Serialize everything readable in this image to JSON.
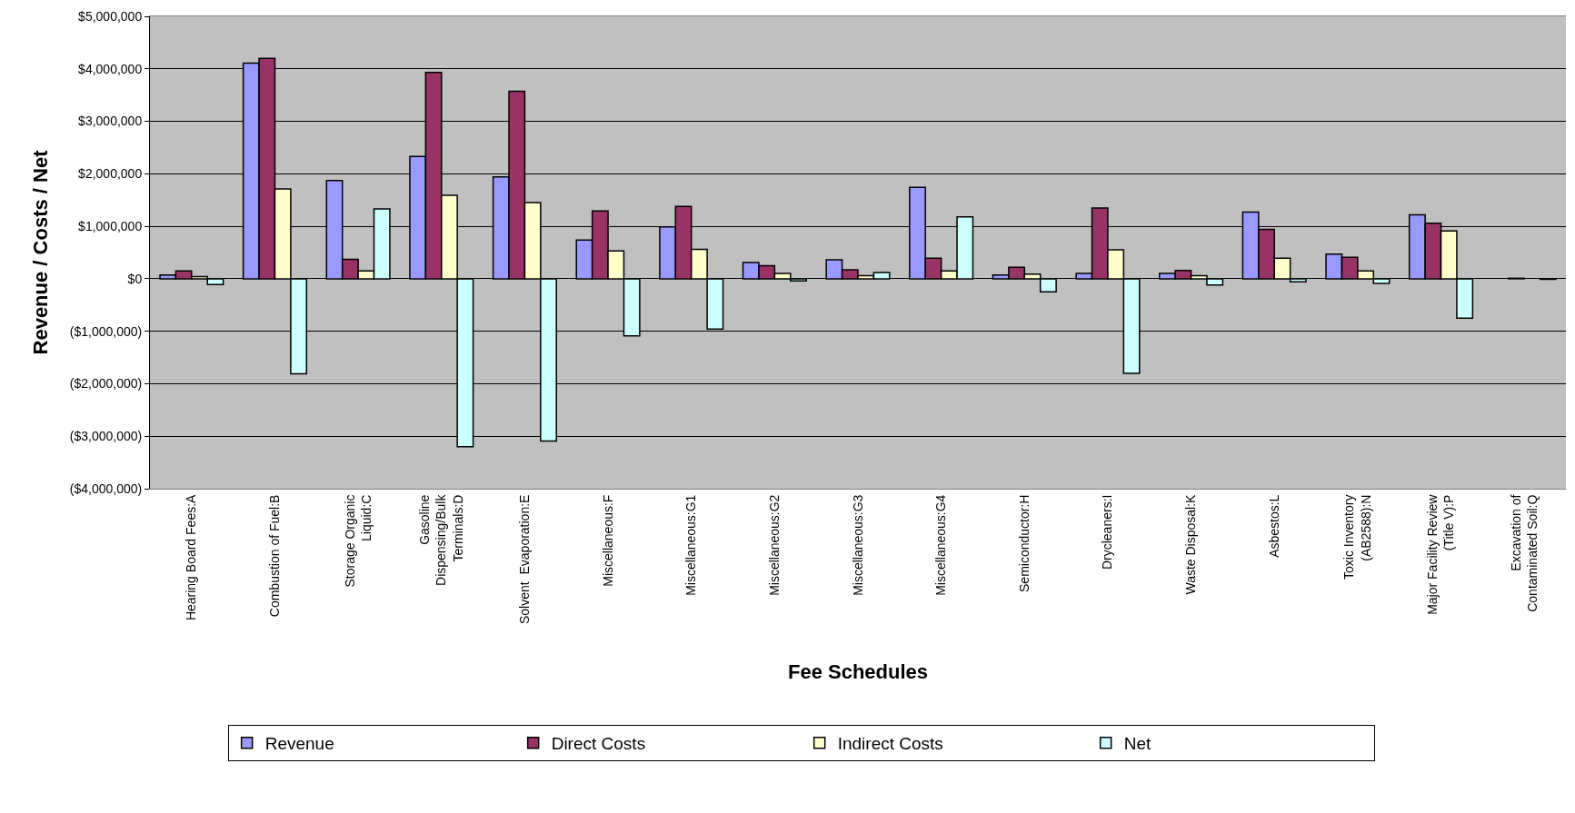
{
  "chart_data": {
    "type": "bar",
    "xlabel": "Fee Schedules",
    "ylabel": "Revenue / Costs / Net",
    "categories": [
      "Hearing Board Fees:A",
      "Combustion of Fuel:B",
      "Storage Organic\nLiquid:C",
      "Gasoline\nDispensing/Bulk\nTerminals:D",
      "Solvent  Evaporation:E",
      "Miscellaneous:F",
      "Miscellaneous:G1",
      "Miscellaneous:G2",
      "Miscellaneous:G3",
      "Miscellaneous:G4",
      "Semiconductor:H",
      "Drycleaners:I",
      "Waste Disposal:K",
      "Asbestos:L",
      "Toxic Inventory\n(AB2588):N",
      "Major Facility Review\n(Title V):P",
      "Excavation of\nContaminated Soil:Q"
    ],
    "series": [
      {
        "name": "Revenue",
        "color": "#9999ff",
        "values": [
          70000,
          4110000,
          1870000,
          2330000,
          1940000,
          740000,
          990000,
          310000,
          360000,
          1740000,
          70000,
          100000,
          100000,
          1270000,
          470000,
          1220000,
          null
        ]
      },
      {
        "name": "Direct Costs",
        "color": "#993366",
        "values": [
          150000,
          4200000,
          370000,
          3930000,
          3570000,
          1290000,
          1380000,
          250000,
          170000,
          390000,
          220000,
          1350000,
          160000,
          940000,
          410000,
          1060000,
          10000
        ]
      },
      {
        "name": "Indirect Costs",
        "color": "#ffffcc",
        "values": [
          40000,
          1710000,
          150000,
          1590000,
          1450000,
          530000,
          560000,
          100000,
          60000,
          150000,
          90000,
          550000,
          60000,
          390000,
          150000,
          910000,
          null
        ]
      },
      {
        "name": "Net",
        "color": "#ccffff",
        "values": [
          -110000,
          -1810000,
          1330000,
          -3200000,
          -3090000,
          -1090000,
          -960000,
          -40000,
          120000,
          1180000,
          -250000,
          -1800000,
          -120000,
          -60000,
          -90000,
          -750000,
          -10000
        ]
      }
    ],
    "ylim": [
      -4000000,
      5000000
    ],
    "yticks": [
      {
        "value": -4000000,
        "label": "($4,000,000)"
      },
      {
        "value": -3000000,
        "label": "($3,000,000)"
      },
      {
        "value": -2000000,
        "label": "($2,000,000)"
      },
      {
        "value": -1000000,
        "label": "($1,000,000)"
      },
      {
        "value": 0,
        "label": "$0"
      },
      {
        "value": 1000000,
        "label": "$1,000,000"
      },
      {
        "value": 2000000,
        "label": "$2,000,000"
      },
      {
        "value": 3000000,
        "label": "$3,000,000"
      },
      {
        "value": 4000000,
        "label": "$4,000,000"
      },
      {
        "value": 5000000,
        "label": "$5,000,000"
      }
    ],
    "grid": "y",
    "legend": "bottom"
  }
}
